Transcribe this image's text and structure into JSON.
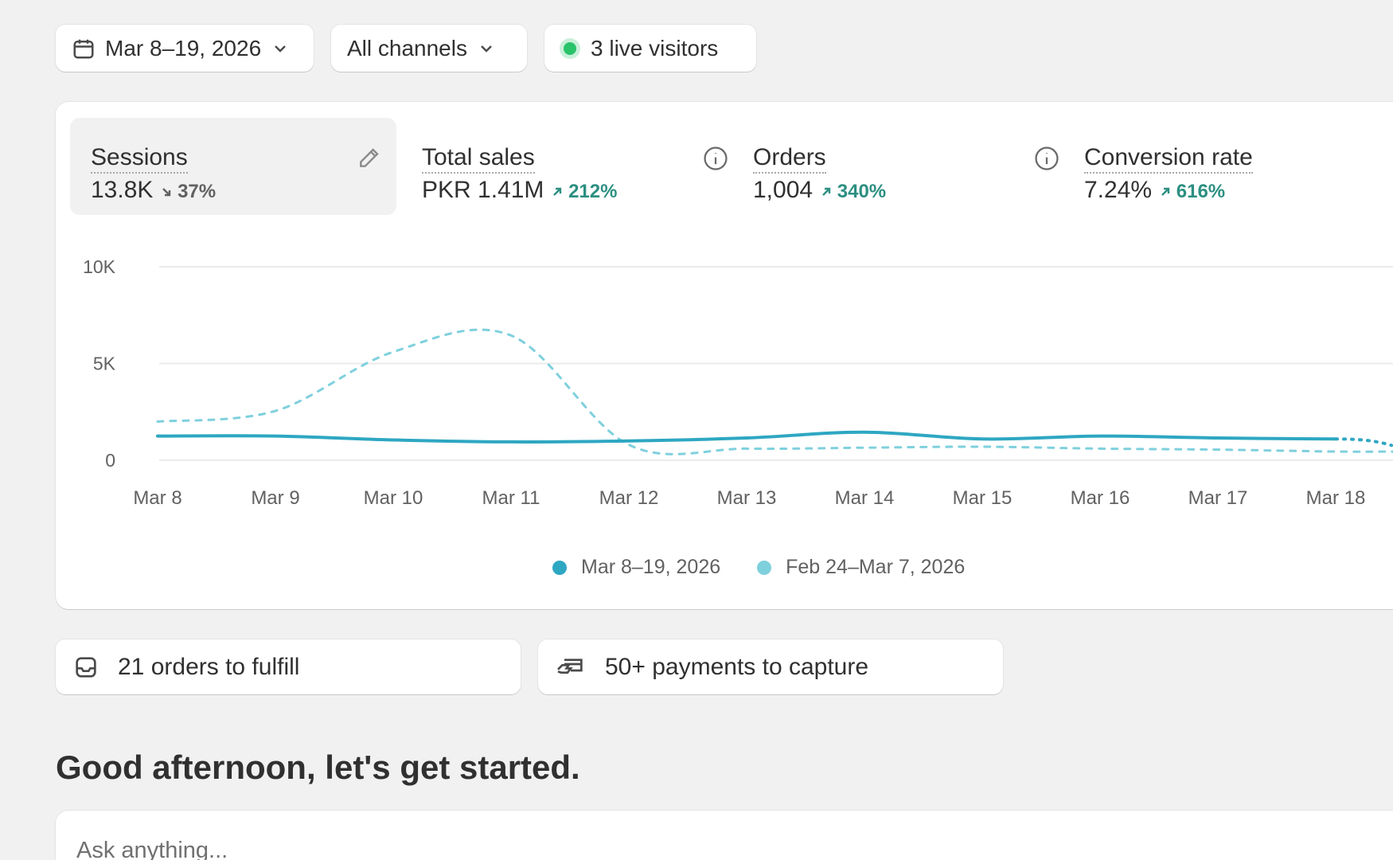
{
  "filters": {
    "date_range": "Mar 8–19, 2026",
    "channel": "All channels",
    "live_visitors": "3 live visitors"
  },
  "metrics": [
    {
      "label": "Sessions",
      "value": "13.8K",
      "delta": "37%",
      "direction": "down"
    },
    {
      "label": "Total sales",
      "value": "PKR 1.41M",
      "delta": "212%",
      "direction": "up"
    },
    {
      "label": "Orders",
      "value": "1,004",
      "delta": "340%",
      "direction": "up"
    },
    {
      "label": "Conversion rate",
      "value": "7.24%",
      "delta": "616%",
      "direction": "up"
    }
  ],
  "chart_data": {
    "type": "line",
    "x": [
      "Mar 8",
      "Mar 9",
      "Mar 10",
      "Mar 11",
      "Mar 12",
      "Mar 13",
      "Mar 14",
      "Mar 15",
      "Mar 16",
      "Mar 17",
      "Mar 18"
    ],
    "y_ticks": [
      "10K",
      "5K",
      "0"
    ],
    "ylim": [
      0,
      10000
    ],
    "series": [
      {
        "name": "Mar 8–19, 2026",
        "style": "solid",
        "color": "#2ea7c2",
        "values": [
          1250,
          1250,
          1050,
          950,
          1000,
          1150,
          1450,
          1100,
          1250,
          1150,
          1100
        ]
      },
      {
        "name": "Feb 24–Mar 7, 2026",
        "style": "dashed",
        "color": "#7fd0dd",
        "values": [
          2000,
          2550,
          5600,
          6450,
          800,
          600,
          650,
          700,
          600,
          550,
          450
        ]
      }
    ],
    "grid": true,
    "legend_position": "bottom-center"
  },
  "tasks": [
    {
      "label": "21 orders to fulfill",
      "icon": "inbox-icon"
    },
    {
      "label": "50+ payments to capture",
      "icon": "payment-card-icon"
    }
  ],
  "greeting": "Good afternoon, let's get started.",
  "ask": {
    "placeholder": "Ask anything..."
  },
  "colors": {
    "accent_positive": "#2c8f81",
    "live": "#29c36a",
    "series_current": "#2ea7c2",
    "series_previous": "#7fd0dd"
  }
}
